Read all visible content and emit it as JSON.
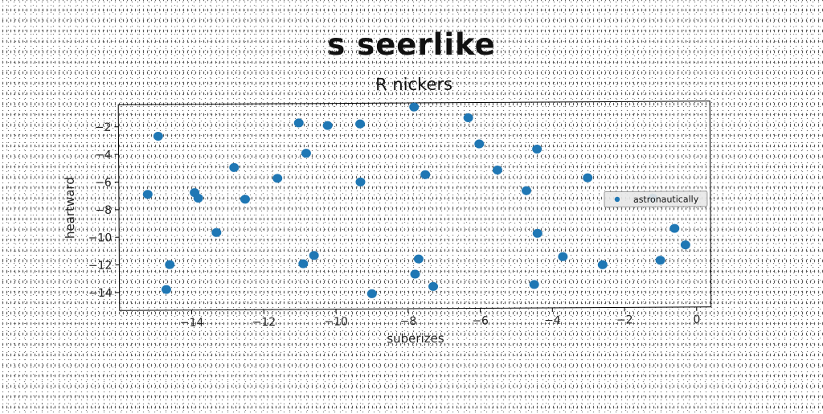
{
  "figure": {
    "suptitle": "s seerlike"
  },
  "chart_data": {
    "type": "scatter",
    "title": "R nickers",
    "xlabel": "suberizes",
    "ylabel": "heartward",
    "xlim": [
      -16.0,
      0.4
    ],
    "ylim": [
      -15.3,
      -0.4
    ],
    "xticks": [
      -14,
      -12,
      -10,
      -8,
      -6,
      -4,
      -2,
      0
    ],
    "yticks": [
      -14,
      -12,
      -10,
      -8,
      -6,
      -4,
      -2
    ],
    "xtick_labels": [
      "−14",
      "−12",
      "−10",
      "−8",
      "−6",
      "−4",
      "−2",
      "0"
    ],
    "ytick_labels": [
      "−14",
      "−12",
      "−10",
      "−8",
      "−6",
      "−4",
      "−2"
    ],
    "legend_position": "right",
    "grid": false,
    "series": [
      {
        "name": "astronautically",
        "color": "#1f77b4",
        "x": [
          -15.2,
          -14.9,
          -14.6,
          -14.7,
          -13.9,
          -13.8,
          -13.3,
          -12.8,
          -12.5,
          -11.6,
          -11.0,
          -10.8,
          -10.9,
          -10.6,
          -10.2,
          -9.3,
          -9.3,
          -9.0,
          -7.8,
          -7.8,
          -7.7,
          -7.5,
          -7.3,
          -6.3,
          -6.0,
          -5.5,
          -4.7,
          -4.5,
          -4.4,
          -4.4,
          -3.7,
          -3.0,
          -2.6,
          -1.2,
          -1.0,
          -0.6,
          -0.3
        ],
        "y": [
          -6.9,
          -2.7,
          -12.0,
          -13.8,
          -6.8,
          -7.2,
          -9.7,
          -5.0,
          -7.3,
          -5.8,
          -1.8,
          -4.0,
          -12.0,
          -11.4,
          -2.0,
          -6.1,
          -1.9,
          -14.2,
          -0.7,
          -12.8,
          -11.7,
          -5.6,
          -13.7,
          -1.5,
          -3.4,
          -5.3,
          -6.8,
          -13.6,
          -3.8,
          -9.9,
          -11.6,
          -5.9,
          -12.2,
          -7.4,
          -11.9,
          -9.6,
          -10.8
        ]
      }
    ]
  }
}
